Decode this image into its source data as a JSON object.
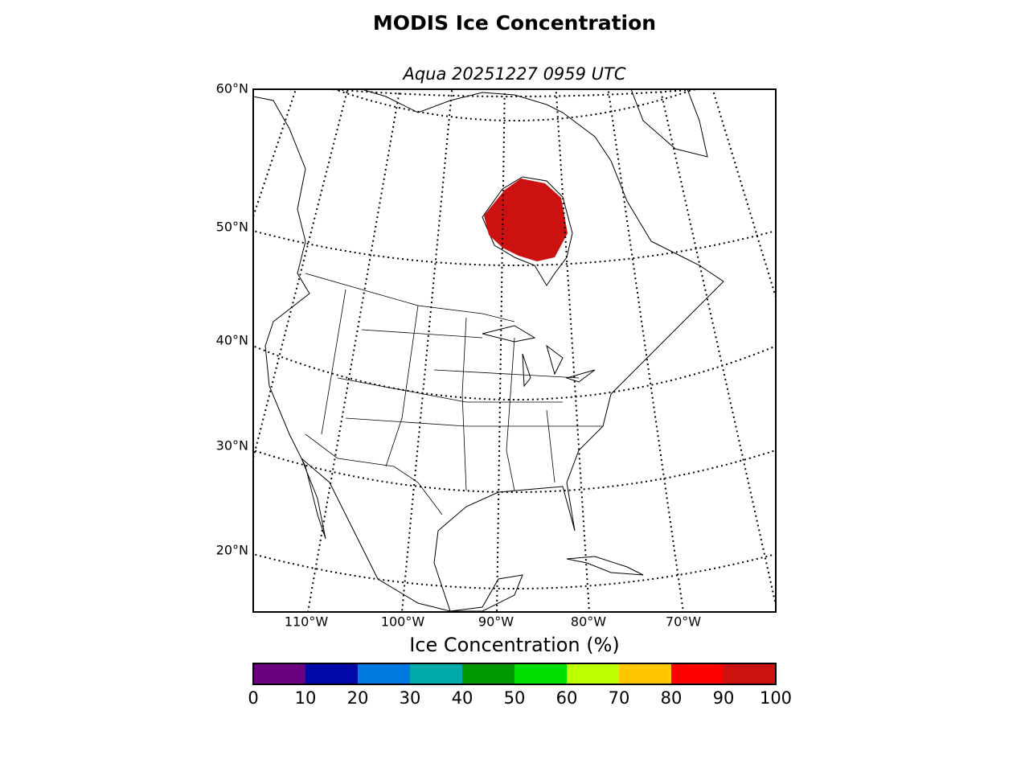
{
  "title": "MODIS Ice Concentration",
  "subtitle": "Aqua 20251227 0959 UTC",
  "lat_labels": [
    "60°N",
    "50°N",
    "40°N",
    "30°N",
    "20°N"
  ],
  "lon_labels": [
    "110°W",
    "100°W",
    "90°W",
    "80°W",
    "70°W"
  ],
  "colorbar": {
    "label": "Ice Concentration (%)",
    "ticks": [
      0,
      10,
      20,
      30,
      40,
      50,
      60,
      70,
      80,
      90,
      100
    ],
    "colors": [
      "#6a0080",
      "#0008a8",
      "#0078e0",
      "#00aaaa",
      "#009800",
      "#00e000",
      "#bbff00",
      "#ffc800",
      "#ff0000",
      "#cc1111"
    ]
  }
}
